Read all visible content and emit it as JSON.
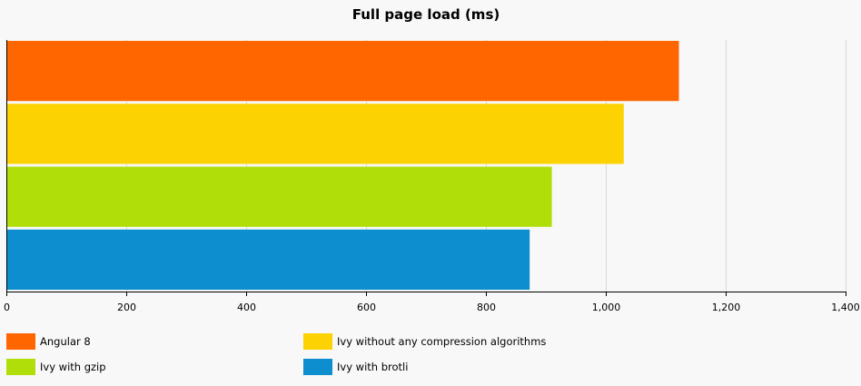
{
  "chart_data": {
    "type": "bar",
    "orientation": "horizontal",
    "title": "Full page load (ms)",
    "categories": [
      "Angular 8",
      "Ivy without any compression algorithms",
      "Ivy with gzip",
      "Ivy with brotli"
    ],
    "values": [
      1122,
      1030,
      910,
      873
    ],
    "colors": [
      "#ff6600",
      "#fcd202",
      "#b0de09",
      "#0d8ecf"
    ],
    "xlim": [
      0,
      1400
    ],
    "xticks": [
      0,
      200,
      400,
      600,
      800,
      1000,
      1200,
      1400
    ],
    "xtick_labels": [
      "0",
      "200",
      "400",
      "600",
      "800",
      "1,000",
      "1,200",
      "1,400"
    ],
    "grid": true,
    "legend_position": "bottom"
  }
}
